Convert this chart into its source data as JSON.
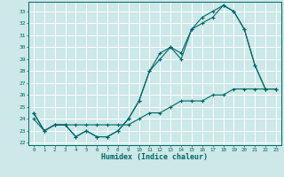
{
  "xlabel": "Humidex (Indice chaleur)",
  "bg_color": "#cce8e8",
  "line_color": "#006666",
  "grid_color": "#ffffff",
  "ylim": [
    21.8,
    33.8
  ],
  "xlim": [
    -0.5,
    23.5
  ],
  "yticks": [
    22,
    23,
    24,
    25,
    26,
    27,
    28,
    29,
    30,
    31,
    32,
    33
  ],
  "xticks": [
    0,
    1,
    2,
    3,
    4,
    5,
    6,
    7,
    8,
    9,
    10,
    11,
    12,
    13,
    14,
    15,
    16,
    17,
    18,
    19,
    20,
    21,
    22,
    23
  ],
  "line1": [
    24.5,
    23.0,
    23.5,
    23.5,
    22.5,
    23.0,
    22.5,
    22.5,
    23.0,
    24.0,
    25.5,
    28.0,
    29.0,
    30.0,
    29.0,
    31.5,
    32.5,
    33.0,
    33.5,
    33.0,
    31.5,
    28.5,
    26.5,
    26.5
  ],
  "line2": [
    24.5,
    23.0,
    23.5,
    23.5,
    22.5,
    23.0,
    22.5,
    22.5,
    23.0,
    24.0,
    25.5,
    28.0,
    29.5,
    30.0,
    29.5,
    31.5,
    32.0,
    32.5,
    33.5,
    33.0,
    31.5,
    28.5,
    26.5,
    26.5
  ],
  "line3": [
    24.0,
    23.0,
    23.5,
    23.5,
    23.5,
    23.5,
    23.5,
    23.5,
    23.5,
    23.5,
    24.0,
    24.5,
    24.5,
    25.0,
    25.5,
    25.5,
    25.5,
    26.0,
    26.0,
    26.5,
    26.5,
    26.5,
    26.5,
    26.5
  ]
}
